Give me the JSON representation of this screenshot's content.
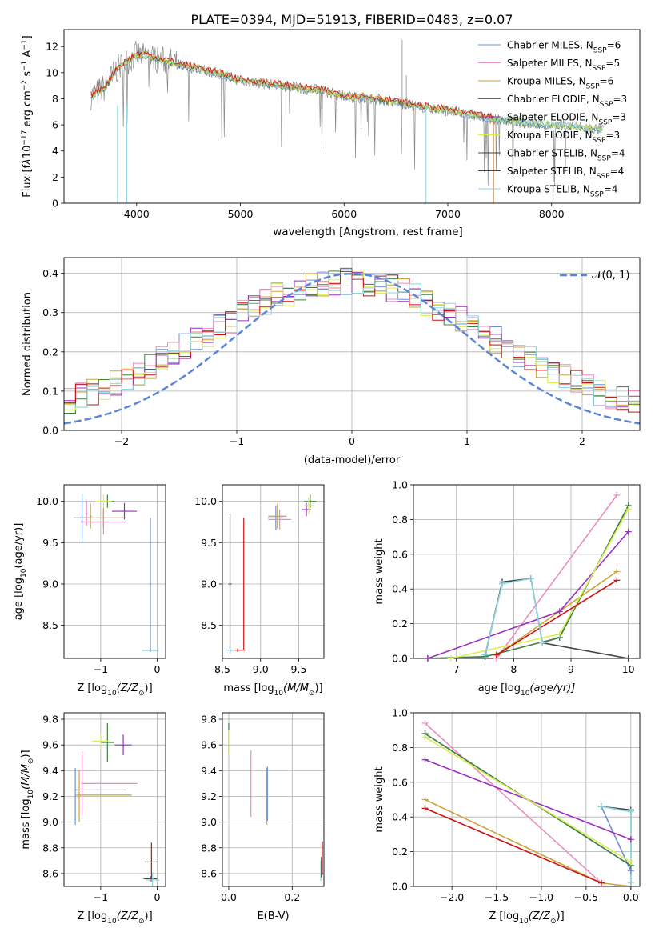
{
  "figure": {
    "title": "PLATE=0394, MJD=51913, FIBERID=0483, z=0.07"
  },
  "series_styles": [
    {
      "name": "Chabrier MILES",
      "nssp": "6",
      "color": "#6f8fd6"
    },
    {
      "name": "Salpeter MILES",
      "nssp": "5",
      "color": "#e98fbf"
    },
    {
      "name": "Kroupa MILES",
      "nssp": "6",
      "color": "#c9a53c"
    },
    {
      "name": "Chabrier ELODIE",
      "nssp": "3",
      "color": "#3f7f3f"
    },
    {
      "name": "Salpeter ELODIE",
      "nssp": "3",
      "color": "#9b2fbf"
    },
    {
      "name": "Kroupa ELODIE",
      "nssp": "3",
      "color": "#d9ef4f"
    },
    {
      "name": "Chabrier STELIB",
      "nssp": "4",
      "color": "#444444"
    },
    {
      "name": "Salpeter STELIB",
      "nssp": "4",
      "color": "#cc1111"
    },
    {
      "name": "Kroupa STELIB",
      "nssp": "4",
      "color": "#8fd6e0"
    }
  ],
  "colors": {
    "data_spectrum": "#8a8a8a",
    "gaussian": "#5b86d8",
    "orange_line": "#e0813a",
    "grid": "#b0b0b0"
  },
  "chart_data": [
    {
      "id": "spectrum",
      "type": "line",
      "title": "PLATE=0394, MJD=51913, FIBERID=0483, z=0.07",
      "xlabel": "wavelength [Angstrom, rest frame]",
      "ylabel_parts": [
        "Flux [f",
        "λ",
        "10",
        "−17",
        " erg cm",
        "−2",
        " s",
        "−1",
        " A",
        "−1",
        "]"
      ],
      "xlim": [
        3300,
        8850
      ],
      "ylim": [
        0,
        13.3
      ],
      "xticks": [
        4000,
        5000,
        6000,
        7000,
        8000
      ],
      "yticks": [
        0,
        2,
        4,
        6,
        8,
        10,
        12
      ],
      "grid": false,
      "legend": "top-right",
      "data_points": [
        [
          3560,
          8.2
        ],
        [
          3700,
          8.9
        ],
        [
          3800,
          10.2
        ],
        [
          3900,
          10.8
        ],
        [
          4000,
          11.4
        ],
        [
          4100,
          11.3
        ],
        [
          4200,
          11.0
        ],
        [
          4300,
          10.9
        ],
        [
          4400,
          10.6
        ],
        [
          4600,
          10.3
        ],
        [
          4800,
          9.9
        ],
        [
          5000,
          9.4
        ],
        [
          5200,
          9.2
        ],
        [
          5500,
          8.9
        ],
        [
          5800,
          8.6
        ],
        [
          6000,
          8.2
        ],
        [
          6300,
          8.0
        ],
        [
          6600,
          7.6
        ],
        [
          6800,
          7.3
        ],
        [
          7000,
          7.1
        ],
        [
          7200,
          6.8
        ],
        [
          7400,
          6.5
        ],
        [
          7600,
          6.3
        ],
        [
          7800,
          6.1
        ],
        [
          8000,
          6.0
        ],
        [
          8200,
          5.9
        ],
        [
          8400,
          5.7
        ],
        [
          8500,
          5.6
        ]
      ]
    },
    {
      "id": "residual_hist",
      "type": "line",
      "xlabel": "(data-model)/error",
      "ylabel": "Normed distribution",
      "xlim": [
        -2.5,
        2.5
      ],
      "ylim": [
        0,
        0.44
      ],
      "xticks": [
        -2,
        -1,
        0,
        1,
        2
      ],
      "yticks": [
        0.0,
        0.1,
        0.2,
        0.3,
        0.4
      ],
      "grid": true,
      "legend": "top-right",
      "gaussian_label": "𝒩(0, 1)",
      "bin_width": 0.1
    },
    {
      "id": "age_vs_Z",
      "type": "scatter",
      "xlabel_parts": [
        "Z [log",
        "10",
        "(Z/Z",
        "⊙",
        ")]"
      ],
      "ylabel_parts": [
        "age  [log",
        "10",
        "(age/yr)]"
      ],
      "xlim": [
        -1.65,
        0.15
      ],
      "ylim": [
        8.1,
        10.2
      ],
      "xticks": [
        -1,
        0
      ],
      "yticks": [
        8.5,
        9.0,
        9.5,
        10.0
      ],
      "grid": true,
      "points": [
        {
          "s": 0,
          "x": -1.33,
          "y": 9.8,
          "xe": 0.15,
          "ye": 0.3
        },
        {
          "s": 1,
          "x": -0.95,
          "y": 9.75,
          "xe": 0.4,
          "ye": 0.15
        },
        {
          "s": 2,
          "x": -0.95,
          "y": 9.8,
          "xe": 0.4,
          "ye": 0.12
        },
        {
          "s": 3,
          "x": -0.88,
          "y": 10.0,
          "xe": 0.12,
          "ye": 0.08
        },
        {
          "s": 4,
          "x": -0.58,
          "y": 9.88,
          "xe": 0.22,
          "ye": 0.1
        },
        {
          "s": 5,
          "x": -0.95,
          "y": 10.0,
          "xe": 0.15,
          "ye": 0.08
        },
        {
          "s": 6,
          "x": -0.12,
          "y": 8.2,
          "xe": 0.15,
          "ye": 0.02
        },
        {
          "s": 7,
          "x": -0.12,
          "y": 8.2,
          "xe": 0.12,
          "ye": 0.02
        },
        {
          "s": 8,
          "x": -0.12,
          "y": 8.2,
          "xe": 0.15,
          "ye": 0.02
        },
        {
          "s": 0,
          "x": -0.12,
          "y": 9.0,
          "xe": 0.02,
          "ye": 0.8
        },
        {
          "s": 1,
          "x": -1.25,
          "y": 9.85,
          "xe": 0.02,
          "ye": 0.15
        },
        {
          "s": 2,
          "x": -1.18,
          "y": 9.82,
          "xe": 0.02,
          "ye": 0.15
        }
      ]
    },
    {
      "id": "age_vs_mass",
      "type": "scatter",
      "xlabel_parts": [
        "mass [log",
        "10",
        "(M/M",
        "⊙",
        ")]"
      ],
      "xlim": [
        8.5,
        9.83
      ],
      "ylim": [
        8.1,
        10.2
      ],
      "xticks": [
        8.5,
        9.0,
        9.5
      ],
      "yticks": [
        8.5,
        9.0,
        9.5,
        10.0
      ],
      "grid": true,
      "points": [
        {
          "s": 0,
          "x": 9.2,
          "y": 9.8,
          "xe": 0.1,
          "ye": 0.15
        },
        {
          "s": 1,
          "x": 9.25,
          "y": 9.78,
          "xe": 0.15,
          "ye": 0.12
        },
        {
          "s": 2,
          "x": 9.22,
          "y": 9.82,
          "xe": 0.12,
          "ye": 0.15
        },
        {
          "s": 3,
          "x": 9.65,
          "y": 10.0,
          "xe": 0.08,
          "ye": 0.08
        },
        {
          "s": 4,
          "x": 9.6,
          "y": 9.9,
          "xe": 0.06,
          "ye": 0.08
        },
        {
          "s": 5,
          "x": 9.63,
          "y": 9.95,
          "xe": 0.06,
          "ye": 0.1
        },
        {
          "s": 6,
          "x": 8.6,
          "y": 9.0,
          "xe": 0.02,
          "ye": 0.85
        },
        {
          "s": 7,
          "x": 8.7,
          "y": 8.2,
          "xe": 0.1,
          "ye": 0.02
        },
        {
          "s": 8,
          "x": 8.6,
          "y": 8.2,
          "xe": 0.06,
          "ye": 0.02
        },
        {
          "s": 7,
          "x": 8.78,
          "y": 9.0,
          "xe": 0.0,
          "ye": 0.8
        }
      ]
    },
    {
      "id": "massweight_vs_age",
      "type": "line",
      "xlabel_parts": [
        "age  [log",
        "10",
        "(age/yr)]"
      ],
      "ylabel": "mass weight",
      "xlim": [
        6.25,
        10.2
      ],
      "ylim": [
        0,
        1.0
      ],
      "xticks": [
        7,
        8,
        9,
        10
      ],
      "yticks": [
        0.0,
        0.2,
        0.4,
        0.6,
        0.8,
        1.0
      ],
      "grid": true,
      "series": [
        {
          "s": 0,
          "x": [
            6.5,
            7.5,
            7.8,
            8.3,
            8.5,
            8.8,
            10.0
          ],
          "y": [
            0.0,
            0.01,
            0.44,
            0.46,
            0.09,
            0.12,
            0.88
          ]
        },
        {
          "s": 1,
          "x": [
            7.7,
            9.8
          ],
          "y": [
            0.0,
            0.94
          ]
        },
        {
          "s": 2,
          "x": [
            7.7,
            9.8
          ],
          "y": [
            0.02,
            0.5
          ]
        },
        {
          "s": 3,
          "x": [
            6.5,
            7.5,
            8.8,
            10.0
          ],
          "y": [
            0.0,
            0.01,
            0.12,
            0.88
          ]
        },
        {
          "s": 4,
          "x": [
            6.5,
            8.8,
            10.0
          ],
          "y": [
            0.0,
            0.27,
            0.73
          ]
        },
        {
          "s": 5,
          "x": [
            6.9,
            8.8,
            10.0
          ],
          "y": [
            0.0,
            0.14,
            0.86
          ]
        },
        {
          "s": 6,
          "x": [
            7.5,
            7.8,
            8.3,
            8.5,
            10.0
          ],
          "y": [
            0.02,
            0.44,
            0.46,
            0.09,
            0.0
          ]
        },
        {
          "s": 7,
          "x": [
            7.7,
            9.8
          ],
          "y": [
            0.02,
            0.45
          ]
        },
        {
          "s": 8,
          "x": [
            7.5,
            7.8,
            8.3,
            8.5
          ],
          "y": [
            0.02,
            0.43,
            0.46,
            0.09
          ]
        }
      ]
    },
    {
      "id": "mass_vs_Z",
      "type": "scatter",
      "xlabel_parts": [
        "Z [log",
        "10",
        "(Z/Z",
        "⊙",
        ")]"
      ],
      "ylabel_parts": [
        "mass [log",
        "10",
        "(M/M",
        "⊙",
        ")]"
      ],
      "xlim": [
        -1.65,
        0.15
      ],
      "ylim": [
        8.5,
        9.85
      ],
      "xticks": [
        -1,
        0
      ],
      "yticks": [
        8.6,
        8.8,
        9.0,
        9.2,
        9.4,
        9.6,
        9.8
      ],
      "grid": true,
      "points": [
        {
          "s": 0,
          "x": -1.0,
          "y": 9.25,
          "xe": 0.45,
          "ye": 0.0
        },
        {
          "s": 0,
          "x": -1.45,
          "y": 9.2,
          "xe": 0.0,
          "ye": 0.22
        },
        {
          "s": 1,
          "x": -0.85,
          "y": 9.3,
          "xe": 0.5,
          "ye": 0.0
        },
        {
          "s": 1,
          "x": -1.33,
          "y": 9.3,
          "xe": 0.0,
          "ye": 0.25
        },
        {
          "s": 2,
          "x": -0.95,
          "y": 9.21,
          "xe": 0.5,
          "ye": 0.0
        },
        {
          "s": 2,
          "x": -1.38,
          "y": 9.2,
          "xe": 0.0,
          "ye": 0.2
        },
        {
          "s": 3,
          "x": -0.88,
          "y": 9.62,
          "xe": 0.12,
          "ye": 0.15
        },
        {
          "s": 4,
          "x": -0.6,
          "y": 9.6,
          "xe": 0.15,
          "ye": 0.08
        },
        {
          "s": 5,
          "x": -1.0,
          "y": 9.63,
          "xe": 0.15,
          "ye": 0.06
        },
        {
          "s": 6,
          "x": -0.12,
          "y": 8.56,
          "xe": 0.12,
          "ye": 0.02
        },
        {
          "s": 7,
          "x": -0.1,
          "y": 8.69,
          "xe": 0.12,
          "ye": 0.15
        },
        {
          "s": 8,
          "x": -0.08,
          "y": 8.55,
          "xe": 0.12,
          "ye": 0.06
        }
      ]
    },
    {
      "id": "mass_vs_ebv",
      "type": "scatter",
      "xlabel": "E(B-V)",
      "xlim": [
        -0.02,
        0.3
      ],
      "ylim": [
        8.5,
        9.85
      ],
      "xticks": [
        0.0,
        0.2
      ],
      "yticks": [
        8.6,
        8.8,
        9.0,
        9.2,
        9.4,
        9.6,
        9.8
      ],
      "grid": true,
      "points": [
        {
          "s": 1,
          "x": 0.07,
          "y": 9.3,
          "xe": 0.0,
          "ye": 0.26
        },
        {
          "s": 2,
          "x": 0.12,
          "y": 9.2,
          "xe": 0.0,
          "ye": 0.22
        },
        {
          "s": 0,
          "x": 0.122,
          "y": 9.22,
          "xe": 0.0,
          "ye": 0.21
        },
        {
          "s": 3,
          "x": 0.0,
          "y": 9.65,
          "xe": 0.0,
          "ye": 0.12
        },
        {
          "s": 5,
          "x": 0.0,
          "y": 9.62,
          "xe": 0.0,
          "ye": 0.1
        },
        {
          "s": 7,
          "x": 0.295,
          "y": 8.72,
          "xe": 0.0,
          "ye": 0.13
        },
        {
          "s": 8,
          "x": 0.29,
          "y": 8.62,
          "xe": 0.0,
          "ye": 0.08
        },
        {
          "s": 6,
          "x": 0.292,
          "y": 8.65,
          "xe": 0.0,
          "ye": 0.08
        }
      ]
    },
    {
      "id": "massweight_vs_Z",
      "type": "line",
      "xlabel_parts": [
        "Z [log",
        "10",
        "(Z/Z",
        "⊙",
        ")]"
      ],
      "ylabel": "mass weight",
      "xlim": [
        -2.43,
        0.1
      ],
      "ylim": [
        0,
        1.0
      ],
      "xticks": [
        -2.0,
        -1.5,
        -1.0,
        -0.5,
        0.0
      ],
      "yticks": [
        0.0,
        0.2,
        0.4,
        0.6,
        0.8,
        1.0
      ],
      "grid": true,
      "series": [
        {
          "s": 0,
          "x": [
            -2.3,
            0.0,
            0.0,
            -0.33,
            0.0
          ],
          "y": [
            0.88,
            0.12,
            0.44,
            0.46,
            0.09
          ]
        },
        {
          "s": 1,
          "x": [
            -2.3,
            -0.33
          ],
          "y": [
            0.94,
            0.02
          ]
        },
        {
          "s": 2,
          "x": [
            -2.3,
            -0.33,
            0.0
          ],
          "y": [
            0.5,
            0.02,
            0.0
          ]
        },
        {
          "s": 3,
          "x": [
            -2.3,
            0.0
          ],
          "y": [
            0.88,
            0.12
          ]
        },
        {
          "s": 4,
          "x": [
            -2.3,
            0.0
          ],
          "y": [
            0.73,
            0.27
          ]
        },
        {
          "s": 5,
          "x": [
            -2.3,
            0.0
          ],
          "y": [
            0.86,
            0.14
          ]
        },
        {
          "s": 6,
          "x": [
            -0.33,
            0.0,
            0.0
          ],
          "y": [
            0.46,
            0.44,
            0.0
          ]
        },
        {
          "s": 7,
          "x": [
            -2.3,
            -0.33
          ],
          "y": [
            0.45,
            0.02
          ]
        },
        {
          "s": 8,
          "x": [
            -0.33,
            0.0,
            0.0
          ],
          "y": [
            0.46,
            0.43,
            0.02
          ]
        }
      ]
    }
  ]
}
